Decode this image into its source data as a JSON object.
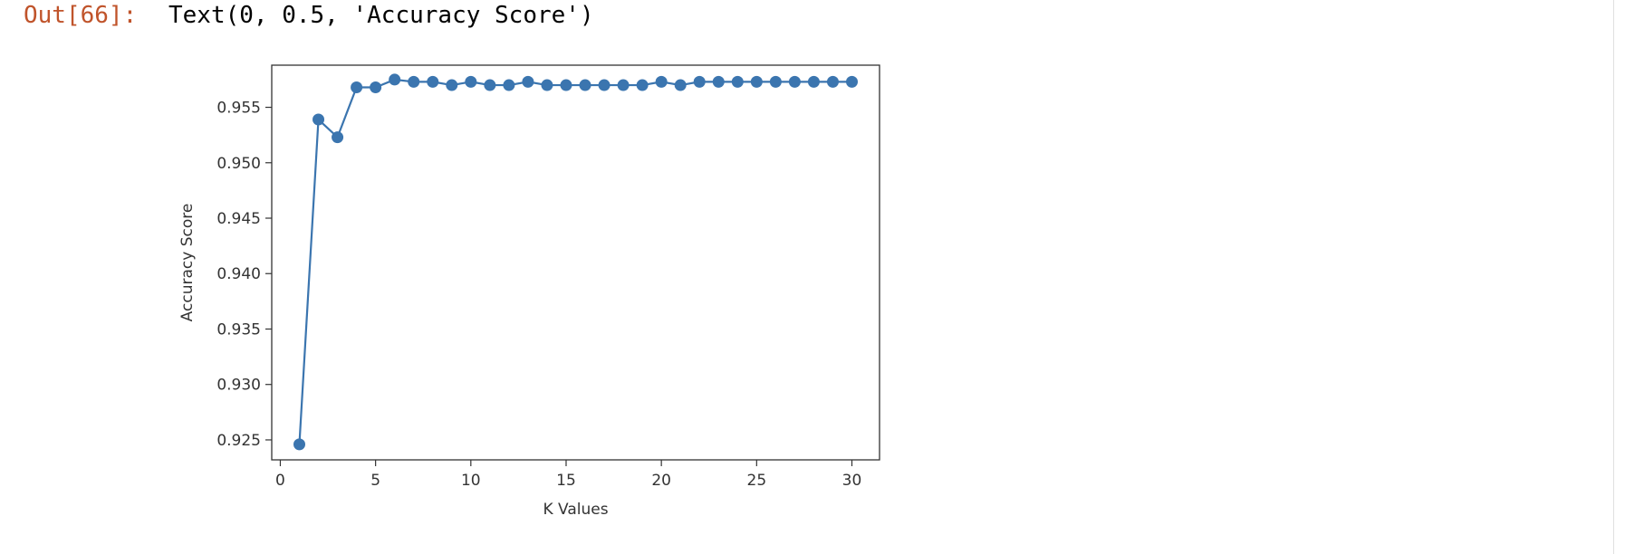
{
  "cell": {
    "prompt": "Out[66]:",
    "output_text": "Text(0, 0.5, 'Accuracy Score')"
  },
  "colors": {
    "prompt": "#c0542b",
    "line": "#3b75af",
    "axes": "#333333"
  },
  "chart_data": {
    "type": "line",
    "xlabel": "K Values",
    "ylabel": "Accuracy Score",
    "xlim": [
      -0.45,
      31.45
    ],
    "ylim": [
      0.9232,
      0.9588
    ],
    "xticks": [
      0,
      5,
      10,
      15,
      20,
      25,
      30
    ],
    "yticks": [
      0.925,
      0.93,
      0.935,
      0.94,
      0.945,
      0.95,
      0.955
    ],
    "ytick_labels": [
      "0.925",
      "0.930",
      "0.935",
      "0.940",
      "0.945",
      "0.950",
      "0.955"
    ],
    "marker": "circle",
    "grid": false,
    "series": [
      {
        "x": [
          1,
          2,
          3,
          4,
          5,
          6,
          7,
          8,
          9,
          10,
          11,
          12,
          13,
          14,
          15,
          16,
          17,
          18,
          19,
          20,
          21,
          22,
          23,
          24,
          25,
          26,
          27,
          28,
          29,
          30
        ],
        "y": [
          0.9246,
          0.9539,
          0.9523,
          0.9568,
          0.9568,
          0.9575,
          0.9573,
          0.9573,
          0.957,
          0.9573,
          0.957,
          0.957,
          0.9573,
          0.957,
          0.957,
          0.957,
          0.957,
          0.957,
          0.957,
          0.9573,
          0.957,
          0.9573,
          0.9573,
          0.9573,
          0.9573,
          0.9573,
          0.9573,
          0.9573,
          0.9573,
          0.9573
        ]
      }
    ]
  }
}
